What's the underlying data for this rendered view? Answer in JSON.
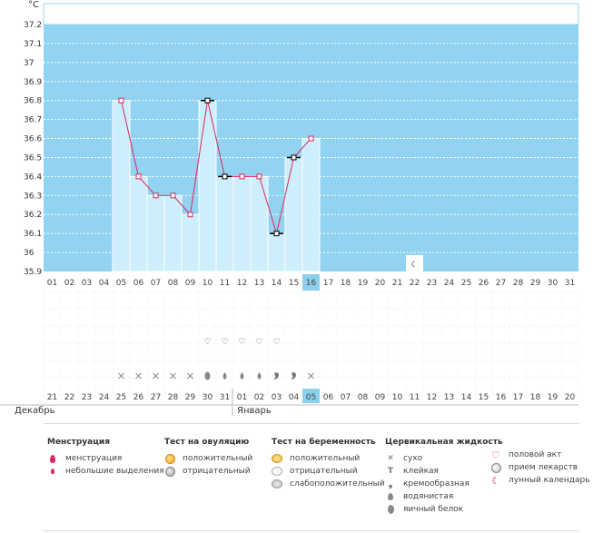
{
  "unit": "°C",
  "y_ticks": [
    "37.2",
    "37.1",
    "37",
    "36.9",
    "36.8",
    "36.7",
    "36.6",
    "36.5",
    "36.4",
    "36.3",
    "36.2",
    "36.1",
    "36",
    "35.9"
  ],
  "cycle_days": [
    "01",
    "02",
    "03",
    "04",
    "05",
    "06",
    "07",
    "08",
    "09",
    "10",
    "11",
    "12",
    "13",
    "14",
    "15",
    "16",
    "17",
    "18",
    "19",
    "20",
    "21",
    "22",
    "23",
    "24",
    "25",
    "26",
    "27",
    "28",
    "29",
    "30",
    "31"
  ],
  "current_day_index": 15,
  "date_labels": [
    "21",
    "22",
    "23",
    "24",
    "25",
    "26",
    "27",
    "28",
    "29",
    "30",
    "31",
    "01",
    "02",
    "03",
    "04",
    "05",
    "06",
    "07",
    "08",
    "09",
    "10",
    "11",
    "12",
    "13",
    "14",
    "15",
    "16",
    "17",
    "18",
    "19",
    "20"
  ],
  "red_dates": [
    3,
    4,
    10,
    11,
    17,
    18,
    24,
    25
  ],
  "months": {
    "december": "Декабрь",
    "january": "Январь"
  },
  "chart_data": {
    "type": "line",
    "ylim": [
      35.9,
      37.3
    ],
    "ylabel": "°C",
    "x": [
      "05",
      "06",
      "07",
      "08",
      "09",
      "10",
      "11",
      "12",
      "13",
      "14",
      "15",
      "16"
    ],
    "series": [
      {
        "values": [
          36.8,
          36.4,
          36.3,
          36.3,
          36.2,
          36.8,
          36.4,
          36.4,
          36.4,
          36.1,
          36.5,
          36.6
        ]
      }
    ],
    "black_markers_days": [
      "10",
      "11",
      "14",
      "15"
    ],
    "grid": true
  },
  "row_hearts_days": [
    "10",
    "11",
    "12",
    "13",
    "14"
  ],
  "row_cervical": [
    {
      "day": "05",
      "icon": "cross"
    },
    {
      "day": "06",
      "icon": "cross"
    },
    {
      "day": "07",
      "icon": "cross"
    },
    {
      "day": "08",
      "icon": "cross"
    },
    {
      "day": "09",
      "icon": "cross"
    },
    {
      "day": "10",
      "icon": "egg"
    },
    {
      "day": "11",
      "icon": "drop"
    },
    {
      "day": "12",
      "icon": "drop"
    },
    {
      "day": "13",
      "icon": "drop"
    },
    {
      "day": "14",
      "icon": "cream"
    },
    {
      "day": "15",
      "icon": "cream"
    },
    {
      "day": "16",
      "icon": "cross"
    }
  ],
  "moon_day": "22",
  "colors": {
    "plot_bg": "#91d3f0",
    "bar": "#cdeefc",
    "line": "#e0245e",
    "highlight": "#8dd0ee",
    "red_text": "#e0245e"
  },
  "legend": {
    "menstruation": {
      "title": "Менструация",
      "items": [
        "менструация",
        "небольшие выделения"
      ]
    },
    "ovulation": {
      "title": "Тест на овуляцию",
      "items": [
        "положительный",
        "отрицательный"
      ]
    },
    "pregnancy": {
      "title": "Тест на беременность",
      "items": [
        "положительный",
        "отрицательный",
        "слабоположительный"
      ]
    },
    "cervical": {
      "title": "Цервикальная жидкость",
      "items": [
        "сухо",
        "клейкая",
        "кремообразная",
        "водянистая",
        "яичный белок"
      ]
    },
    "other": {
      "items": [
        "половой акт",
        "прием лекарств",
        "лунный календарь"
      ]
    }
  }
}
